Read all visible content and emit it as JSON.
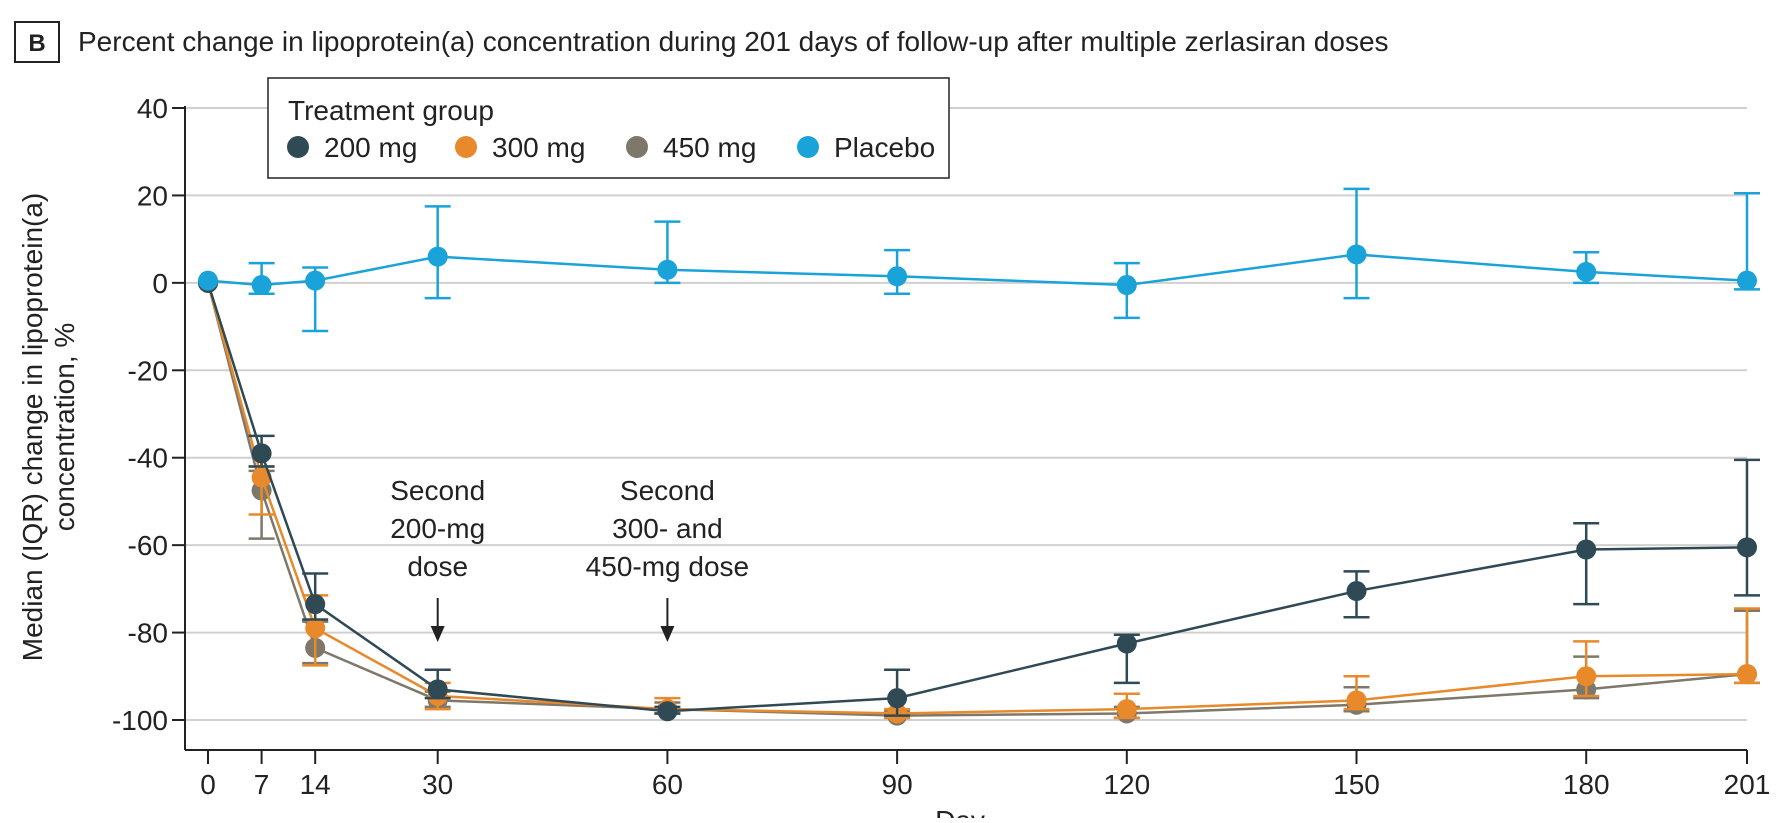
{
  "panel_label": "B",
  "title": "Percent change in lipoprotein(a) concentration during 201 days of follow-up after multiple zerlasiran doses",
  "colors": {
    "200 mg": "#2f4a55",
    "300 mg": "#e8892b",
    "450 mg": "#7d786a",
    "Placebo": "#1aa3d8",
    "grid": "#d0d0d0",
    "axis": "#222222"
  },
  "chart_data": {
    "type": "line",
    "title": "Percent change in lipoprotein(a) concentration during 201 days of follow-up after multiple zerlasiran doses",
    "xlabel": "Day",
    "ylabel": "Median (IQR) change in lipoprotein(a) concentration, %",
    "ylabel_lines": [
      "Median (IQR) change in lipoprotein(a)",
      "concentration, %"
    ],
    "x_ticks": [
      0,
      7,
      14,
      30,
      60,
      90,
      120,
      150,
      180,
      201
    ],
    "y_ticks": [
      40,
      20,
      0,
      -20,
      -40,
      -60,
      -80,
      -100
    ],
    "xlim": [
      0,
      201
    ],
    "ylim": [
      -106,
      40
    ],
    "grid": "horizontal",
    "legend": {
      "title": "Treatment group",
      "placement": "top-left",
      "entries": [
        "200 mg",
        "300 mg",
        "450 mg",
        "Placebo"
      ]
    },
    "series": [
      {
        "name": "200 mg",
        "x": [
          0,
          7,
          14,
          30,
          60,
          90,
          120,
          150,
          180,
          201
        ],
        "y": [
          0,
          -39,
          -73.5,
          -93,
          -98,
          -95,
          -82.5,
          -70.5,
          -61,
          -60.5
        ],
        "q1": [
          0,
          -42,
          -77,
          -95,
          -98.5,
          -99,
          -91.5,
          -76.5,
          -73.5,
          -71.5
        ],
        "q3": [
          0,
          -35,
          -66.5,
          -88.5,
          -97,
          -88.5,
          -80.5,
          -66,
          -55,
          -40.5
        ]
      },
      {
        "name": "300 mg",
        "x": [
          0,
          7,
          14,
          30,
          60,
          90,
          120,
          150,
          180,
          201
        ],
        "y": [
          0,
          -44.5,
          -79,
          -94.5,
          -97.5,
          -98.5,
          -97.5,
          -95.5,
          -90,
          -89.5
        ],
        "q1": [
          0,
          -53,
          -87.5,
          -97.5,
          -98.5,
          -99.5,
          -99.5,
          -97.5,
          -94.5,
          -91.5
        ],
        "q3": [
          0,
          -42,
          -71.5,
          -91.5,
          -95,
          -97.5,
          -94,
          -90,
          -82,
          -74.5
        ]
      },
      {
        "name": "450 mg",
        "x": [
          0,
          7,
          14,
          30,
          60,
          90,
          120,
          150,
          180,
          201
        ],
        "y": [
          0,
          -47.5,
          -83.5,
          -95.5,
          -97.5,
          -99,
          -98.5,
          -96.5,
          -93,
          -89.5
        ],
        "q1": [
          0,
          -58.5,
          -87,
          -97,
          -98.5,
          -99.5,
          -99.5,
          -98,
          -95,
          -91.5
        ],
        "q3": [
          0,
          -43,
          -77.5,
          -93.5,
          -96,
          -98,
          -97,
          -92.5,
          -85.5,
          -75
        ]
      },
      {
        "name": "Placebo",
        "x": [
          0,
          7,
          14,
          30,
          60,
          90,
          120,
          150,
          180,
          201
        ],
        "y": [
          0.5,
          -0.5,
          0.5,
          6,
          3,
          1.5,
          -0.5,
          6.5,
          2.5,
          0.5
        ],
        "q1": [
          0.5,
          -2.5,
          -11,
          -3.5,
          0,
          -2.5,
          -8,
          -3.5,
          0,
          -1.5
        ],
        "q3": [
          0.5,
          4.5,
          3.5,
          17.5,
          14,
          7.5,
          4.5,
          21.5,
          7,
          20.5
        ]
      }
    ],
    "annotations": [
      {
        "x": 30,
        "lines": [
          "Second",
          "200-mg",
          "dose"
        ]
      },
      {
        "x": 60,
        "lines": [
          "Second",
          "300- and",
          "450-mg dose"
        ]
      }
    ]
  }
}
